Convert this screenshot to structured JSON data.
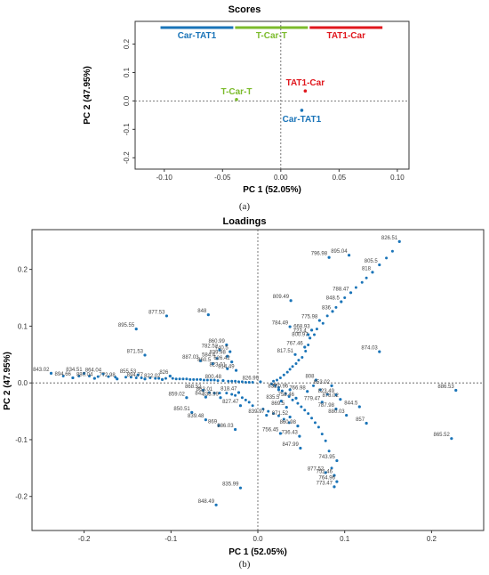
{
  "captions": {
    "a": "(a)",
    "b": "(b)"
  },
  "colors": {
    "Car-TAT1": "#1a74b8",
    "T-Car-T": "#7cbb2c",
    "TAT1-Car": "#e0171d",
    "loading": "#1a74b8"
  },
  "chart_data": [
    {
      "type": "scatter",
      "title": "Scores",
      "xlabel": "PC 1 (52.05%)",
      "ylabel": "PC 2 (47.95%)",
      "xlim": [
        -0.125,
        0.11
      ],
      "ylim": [
        -0.24,
        0.28
      ],
      "xticks": [
        -0.1,
        -0.05,
        0.0,
        0.05,
        0.1
      ],
      "xtick_labels": [
        "-0.10",
        "-0.05",
        "0.00",
        "0.05",
        "0.10"
      ],
      "yticks": [
        -0.2,
        -0.1,
        0.0,
        0.1,
        0.2
      ],
      "ytick_labels": [
        "-0.2",
        "-0.1",
        "0.0",
        "0.1",
        "0.2"
      ],
      "grid": false,
      "legend": [
        {
          "name": "Car-TAT1",
          "color": "#1a74b8"
        },
        {
          "name": "T-Car-T",
          "color": "#7cbb2c"
        },
        {
          "name": "TAT1-Car",
          "color": "#e0171d"
        }
      ],
      "legend_placement": "top",
      "points": [
        {
          "label": "Car-TAT1",
          "x": 0.018,
          "y": -0.033,
          "color": "#1a74b8"
        },
        {
          "label": "T-Car-T",
          "x": -0.038,
          "y": 0.005,
          "color": "#7cbb2c"
        },
        {
          "label": "TAT1-Car",
          "x": 0.021,
          "y": 0.035,
          "color": "#e0171d"
        }
      ]
    },
    {
      "type": "scatter",
      "title": "Loadings",
      "xlabel": "PC 1 (52.05%)",
      "ylabel": "PC 2 (47.95%)",
      "xlim": [
        -0.26,
        0.26
      ],
      "ylim": [
        -0.26,
        0.27
      ],
      "xticks": [
        -0.2,
        -0.1,
        0.0,
        0.1,
        0.2
      ],
      "xtick_labels": [
        "-0.2",
        "-0.1",
        "0.0",
        "0.1",
        "0.2"
      ],
      "yticks": [
        -0.2,
        -0.1,
        0.0,
        0.1,
        0.2
      ],
      "yticks_labels": [
        "-0.2",
        "-0.1",
        "0.0",
        "0.1",
        "0.2"
      ],
      "grid": false,
      "labeled_points": [
        {
          "label": "826.51",
          "x": 0.163,
          "y": 0.249
        },
        {
          "label": "895.04",
          "x": 0.105,
          "y": 0.225
        },
        {
          "label": "796.98",
          "x": 0.082,
          "y": 0.221
        },
        {
          "label": "805.5",
          "x": 0.14,
          "y": 0.208
        },
        {
          "label": "818",
          "x": 0.132,
          "y": 0.195
        },
        {
          "label": "788.47",
          "x": 0.107,
          "y": 0.159
        },
        {
          "label": "848.5",
          "x": 0.096,
          "y": 0.143
        },
        {
          "label": "809.49",
          "x": 0.038,
          "y": 0.145
        },
        {
          "label": "836",
          "x": 0.086,
          "y": 0.126
        },
        {
          "label": "848",
          "x": -0.057,
          "y": 0.12
        },
        {
          "label": "877.53",
          "x": -0.105,
          "y": 0.118
        },
        {
          "label": "775.98",
          "x": 0.071,
          "y": 0.11
        },
        {
          "label": "784.49",
          "x": 0.037,
          "y": 0.099
        },
        {
          "label": "668.93",
          "x": 0.062,
          "y": 0.093
        },
        {
          "label": "895.55",
          "x": -0.14,
          "y": 0.095
        },
        {
          "label": "723.4",
          "x": 0.058,
          "y": 0.085
        },
        {
          "label": "800.97",
          "x": 0.06,
          "y": 0.079
        },
        {
          "label": "860.99",
          "x": -0.036,
          "y": 0.067
        },
        {
          "label": "874.03",
          "x": 0.14,
          "y": 0.055
        },
        {
          "label": "782.52",
          "x": -0.044,
          "y": 0.058
        },
        {
          "label": "740.5",
          "x": -0.032,
          "y": 0.055
        },
        {
          "label": "767.46",
          "x": 0.054,
          "y": 0.063
        },
        {
          "label": "839.98",
          "x": -0.035,
          "y": 0.047
        },
        {
          "label": "584.4",
          "x": -0.047,
          "y": 0.043
        },
        {
          "label": "817.51",
          "x": 0.043,
          "y": 0.05
        },
        {
          "label": "887.03",
          "x": -0.066,
          "y": 0.039
        },
        {
          "label": "626.42",
          "x": -0.03,
          "y": 0.037
        },
        {
          "label": "871.53",
          "x": -0.13,
          "y": 0.049
        },
        {
          "label": "860.5",
          "x": -0.052,
          "y": 0.034
        },
        {
          "label": "823.01",
          "x": -0.035,
          "y": 0.025
        },
        {
          "label": "814.49",
          "x": -0.025,
          "y": 0.022
        },
        {
          "label": "843.02",
          "x": -0.238,
          "y": 0.017
        },
        {
          "label": "834.51",
          "x": -0.2,
          "y": 0.017
        },
        {
          "label": "864.04",
          "x": -0.178,
          "y": 0.016
        },
        {
          "label": "855.53",
          "x": -0.138,
          "y": 0.014
        },
        {
          "label": "826",
          "x": -0.101,
          "y": 0.012
        },
        {
          "label": "894.66",
          "x": -0.213,
          "y": 0.009
        },
        {
          "label": "880.04",
          "x": -0.188,
          "y": 0.008
        },
        {
          "label": "772.98",
          "x": -0.162,
          "y": 0.007
        },
        {
          "label": "894.77",
          "x": -0.13,
          "y": 0.007
        },
        {
          "label": "822.02",
          "x": -0.11,
          "y": 0.006
        },
        {
          "label": "800.48",
          "x": -0.04,
          "y": 0.004
        },
        {
          "label": "826.99",
          "x": 0.003,
          "y": 0.002
        },
        {
          "label": "886.53",
          "x": 0.228,
          "y": -0.013
        },
        {
          "label": "808",
          "x": 0.067,
          "y": 0.005
        },
        {
          "label": "853.02",
          "x": 0.085,
          "y": -0.005
        },
        {
          "label": "832",
          "x": 0.024,
          "y": -0.012
        },
        {
          "label": "770.96",
          "x": 0.037,
          "y": -0.012
        },
        {
          "label": "766.98",
          "x": 0.057,
          "y": -0.015
        },
        {
          "label": "868.52",
          "x": -0.063,
          "y": -0.013
        },
        {
          "label": "863.01",
          "x": -0.05,
          "y": -0.018
        },
        {
          "label": "818.47",
          "x": -0.022,
          "y": -0.017
        },
        {
          "label": "823.49",
          "x": 0.09,
          "y": -0.021
        },
        {
          "label": "758.46",
          "x": 0.044,
          "y": -0.027
        },
        {
          "label": "842",
          "x": -0.06,
          "y": -0.025
        },
        {
          "label": "838.99",
          "x": -0.043,
          "y": -0.026
        },
        {
          "label": "859.02",
          "x": -0.082,
          "y": -0.026
        },
        {
          "label": "878.02",
          "x": 0.095,
          "y": -0.029
        },
        {
          "label": "779.47",
          "x": 0.074,
          "y": -0.034
        },
        {
          "label": "835.5",
          "x": 0.027,
          "y": -0.032
        },
        {
          "label": "827.47",
          "x": -0.02,
          "y": -0.04
        },
        {
          "label": "869.5",
          "x": 0.033,
          "y": -0.043
        },
        {
          "label": "844.5",
          "x": 0.117,
          "y": -0.042
        },
        {
          "label": "787.98",
          "x": 0.09,
          "y": -0.046
        },
        {
          "label": "850.51",
          "x": -0.076,
          "y": -0.052
        },
        {
          "label": "880.03",
          "x": 0.102,
          "y": -0.057
        },
        {
          "label": "839.97",
          "x": 0.01,
          "y": -0.057
        },
        {
          "label": "871.52",
          "x": 0.037,
          "y": -0.06
        },
        {
          "label": "839.48",
          "x": -0.06,
          "y": -0.065
        },
        {
          "label": "857",
          "x": 0.125,
          "y": -0.071
        },
        {
          "label": "869",
          "x": -0.045,
          "y": -0.075
        },
        {
          "label": "860.98",
          "x": 0.046,
          "y": -0.076
        },
        {
          "label": "886.03",
          "x": -0.026,
          "y": -0.082
        },
        {
          "label": "756.45",
          "x": 0.026,
          "y": -0.089
        },
        {
          "label": "736.43",
          "x": 0.048,
          "y": -0.094
        },
        {
          "label": "865.52",
          "x": 0.223,
          "y": -0.098
        },
        {
          "label": "847.99",
          "x": 0.049,
          "y": -0.115
        },
        {
          "label": "743.95",
          "x": 0.091,
          "y": -0.137
        },
        {
          "label": "877.52",
          "x": 0.078,
          "y": -0.158
        },
        {
          "label": "752.46",
          "x": 0.088,
          "y": -0.163
        },
        {
          "label": "764.96",
          "x": 0.091,
          "y": -0.174
        },
        {
          "label": "773.47",
          "x": 0.088,
          "y": -0.183
        },
        {
          "label": "835.99",
          "x": -0.02,
          "y": -0.185
        },
        {
          "label": "848.49",
          "x": -0.048,
          "y": -0.215
        }
      ],
      "unlabeled_points": [
        [
          -0.224,
          0.012
        ],
        [
          -0.206,
          0.012
        ],
        [
          -0.194,
          0.012
        ],
        [
          -0.184,
          0.011
        ],
        [
          -0.172,
          0.011
        ],
        [
          -0.164,
          0.01
        ],
        [
          -0.152,
          0.01
        ],
        [
          -0.146,
          0.01
        ],
        [
          -0.14,
          0.009
        ],
        [
          -0.134,
          0.009
        ],
        [
          -0.124,
          0.009
        ],
        [
          -0.118,
          0.008
        ],
        [
          -0.114,
          0.008
        ],
        [
          -0.106,
          0.008
        ],
        [
          -0.098,
          0.008
        ],
        [
          -0.094,
          0.007
        ],
        [
          -0.09,
          0.007
        ],
        [
          -0.086,
          0.007
        ],
        [
          -0.082,
          0.007
        ],
        [
          -0.078,
          0.006
        ],
        [
          -0.074,
          0.006
        ],
        [
          -0.07,
          0.006
        ],
        [
          -0.066,
          0.006
        ],
        [
          -0.062,
          0.005
        ],
        [
          -0.058,
          0.005
        ],
        [
          -0.054,
          0.005
        ],
        [
          -0.05,
          0.005
        ],
        [
          -0.046,
          0.004
        ],
        [
          -0.034,
          0.003
        ],
        [
          -0.03,
          0.003
        ],
        [
          -0.026,
          0.003
        ],
        [
          -0.022,
          0.002
        ],
        [
          -0.018,
          0.002
        ],
        [
          -0.014,
          0.001
        ],
        [
          -0.01,
          0.001
        ],
        [
          -0.006,
          0.001
        ],
        [
          0.018,
          0.003
        ],
        [
          0.022,
          0.005
        ],
        [
          0.026,
          0.009
        ],
        [
          0.03,
          0.014
        ],
        [
          0.034,
          0.019
        ],
        [
          0.037,
          0.024
        ],
        [
          0.04,
          0.029
        ],
        [
          0.044,
          0.034
        ],
        [
          0.047,
          0.04
        ],
        [
          0.051,
          0.045
        ],
        [
          0.055,
          0.056
        ],
        [
          0.058,
          0.067
        ],
        [
          0.065,
          0.085
        ],
        [
          0.068,
          0.095
        ],
        [
          0.075,
          0.105
        ],
        [
          0.08,
          0.118
        ],
        [
          0.09,
          0.133
        ],
        [
          0.1,
          0.15
        ],
        [
          0.113,
          0.168
        ],
        [
          0.12,
          0.177
        ],
        [
          0.125,
          0.185
        ],
        [
          0.148,
          0.22
        ],
        [
          0.155,
          0.232
        ],
        [
          0.016,
          -0.002
        ],
        [
          0.02,
          -0.005
        ],
        [
          0.024,
          -0.008
        ],
        [
          0.028,
          -0.014
        ],
        [
          0.032,
          -0.019
        ],
        [
          0.036,
          -0.024
        ],
        [
          0.04,
          -0.03
        ],
        [
          0.046,
          -0.036
        ],
        [
          0.05,
          -0.042
        ],
        [
          0.054,
          -0.048
        ],
        [
          0.058,
          -0.054
        ],
        [
          0.062,
          -0.062
        ],
        [
          0.066,
          -0.07
        ],
        [
          0.07,
          -0.078
        ],
        [
          0.074,
          -0.09
        ],
        [
          0.078,
          -0.102
        ],
        [
          0.082,
          -0.12
        ],
        [
          0.085,
          -0.15
        ],
        [
          0.064,
          -0.005
        ],
        [
          0.072,
          -0.012
        ],
        [
          0.08,
          -0.02
        ],
        [
          -0.056,
          -0.017
        ],
        [
          -0.044,
          -0.018
        ],
        [
          -0.036,
          -0.018
        ],
        [
          -0.03,
          -0.02
        ],
        [
          -0.026,
          -0.022
        ],
        [
          -0.018,
          -0.026
        ],
        [
          -0.014,
          -0.03
        ],
        [
          -0.01,
          -0.034
        ],
        [
          -0.006,
          -0.04
        ],
        [
          0.006,
          -0.046
        ],
        [
          0.012,
          -0.05
        ],
        [
          0.018,
          -0.054
        ],
        [
          0.024,
          -0.058
        ],
        [
          0.03,
          -0.064
        ],
        [
          0.036,
          -0.07
        ]
      ]
    }
  ]
}
